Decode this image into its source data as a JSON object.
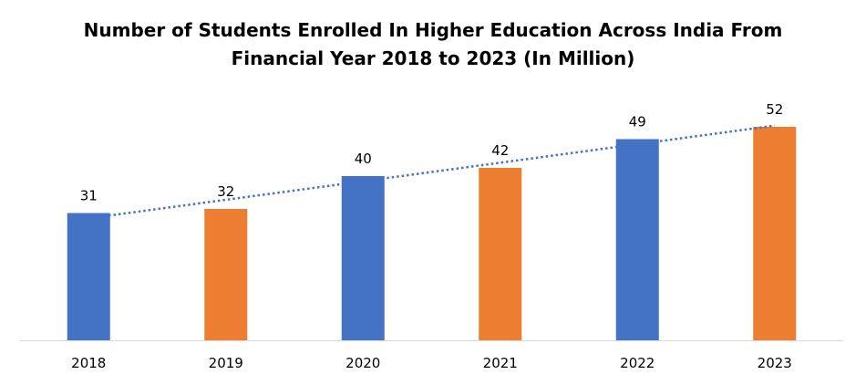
{
  "chart_data": {
    "type": "bar",
    "title_line1": "Number of Students Enrolled In Higher Education Across India From",
    "title_line2": "Financial  Year 2018  to 2023 (In Million)",
    "categories": [
      "2018",
      "2019",
      "2020",
      "2021",
      "2022",
      "2023"
    ],
    "values": [
      31,
      32,
      40,
      42,
      49,
      52
    ],
    "bar_colors": [
      "#4472C4",
      "#ED7D31",
      "#4472C4",
      "#ED7D31",
      "#4472C4",
      "#ED7D31"
    ],
    "trendline": {
      "type": "linear",
      "style": "dotted",
      "color": "#4472C4"
    },
    "data_labels": true,
    "grid": false,
    "legend": "none",
    "ylim": [
      0,
      52
    ]
  }
}
